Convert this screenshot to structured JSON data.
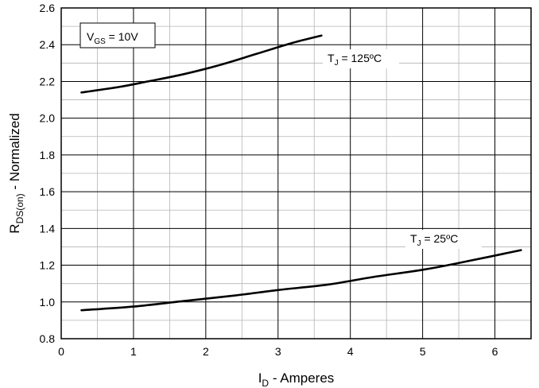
{
  "chart_data": {
    "type": "line",
    "xlabel": {
      "main": "I",
      "sub": "D",
      "rest": " - Amperes"
    },
    "ylabel": {
      "main": "R",
      "sub": "DS(on)",
      "rest": " - Normalized"
    },
    "xlim": [
      0,
      6.5
    ],
    "ylim": [
      0.8,
      2.6
    ],
    "xticks": [
      0,
      1,
      2,
      3,
      4,
      5,
      6
    ],
    "yticks": [
      0.8,
      1.0,
      1.2,
      1.4,
      1.6,
      1.8,
      2.0,
      2.2,
      2.4,
      2.6
    ],
    "ytick_labels": [
      "0.8",
      "1.0",
      "1.2",
      "1.4",
      "1.6",
      "1.8",
      "2.0",
      "2.2",
      "2.4",
      "2.6"
    ],
    "xminor": [
      0.5,
      1.5,
      2.5,
      3.5,
      4.5,
      5.5
    ],
    "yminor": [
      0.9,
      1.1,
      1.3,
      1.5,
      1.7,
      1.9,
      2.1,
      2.3,
      2.5
    ],
    "grid": true,
    "condition_box": {
      "main": "V",
      "sub": "GS",
      "rest": " = 10V"
    },
    "series": [
      {
        "label": {
          "main": "T",
          "sub": "J",
          "rest": " = 125ºC"
        },
        "x": [
          0.28,
          0.8,
          1.2,
          1.7,
          2.2,
          2.7,
          3.2,
          3.6
        ],
        "y": [
          2.14,
          2.17,
          2.2,
          2.24,
          2.29,
          2.35,
          2.41,
          2.45
        ]
      },
      {
        "label": {
          "main": "T",
          "sub": "J",
          "rest": " = 25ºC"
        },
        "x": [
          0.28,
          1.0,
          1.7,
          2.4,
          3.0,
          3.7,
          4.3,
          5.0,
          5.6,
          6.36
        ],
        "y": [
          0.955,
          0.975,
          1.005,
          1.035,
          1.065,
          1.095,
          1.135,
          1.175,
          1.22,
          1.282
        ]
      }
    ]
  }
}
